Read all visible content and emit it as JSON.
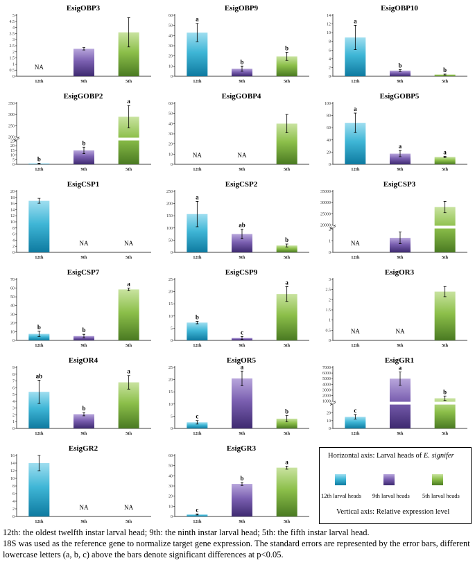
{
  "colors": {
    "12th": [
      "#0e7aa0",
      "#3fb6d6",
      "#9fdef0"
    ],
    "9th": [
      "#3e2a70",
      "#7a5fb0",
      "#b8a6dc"
    ],
    "5th": [
      "#4a7a22",
      "#8cbf4a",
      "#c9e3a0"
    ]
  },
  "chart_data": [
    {
      "type": "bar",
      "title": "EsigOBP3",
      "categories": [
        "12th",
        "9th",
        "5th"
      ],
      "values": [
        null,
        2.25,
        3.6
      ],
      "errors": [
        null,
        0.1,
        1.2
      ],
      "sig": [
        "",
        "",
        ""
      ],
      "na": [
        "NA",
        "",
        ""
      ],
      "ylim": [
        0,
        5
      ],
      "yticks": [
        "0",
        "0.5",
        "1",
        "1.5",
        "2",
        "2.5",
        "3",
        "3.5",
        "4",
        "4.5",
        "5"
      ],
      "ytick_values": [
        0,
        0.5,
        1,
        1.5,
        2,
        2.5,
        3,
        3.5,
        4,
        4.5,
        5
      ]
    },
    {
      "type": "bar",
      "title": "EsigOBP9",
      "categories": [
        "12th",
        "9th",
        "5th"
      ],
      "values": [
        43,
        7.5,
        19.5
      ],
      "errors": [
        9,
        2.5,
        4
      ],
      "sig": [
        "a",
        "b",
        "b"
      ],
      "na": [
        "",
        "",
        ""
      ],
      "ylim": [
        0,
        60
      ],
      "yticks": [
        "0",
        "10",
        "20",
        "30",
        "40",
        "50",
        "60"
      ],
      "ytick_values": [
        0,
        10,
        20,
        30,
        40,
        50,
        60
      ]
    },
    {
      "type": "bar",
      "title": "EsigOBP10",
      "categories": [
        "12th",
        "9th",
        "5th"
      ],
      "values": [
        8.9,
        1.3,
        0.4
      ],
      "errors": [
        2.8,
        0.2,
        0.1
      ],
      "sig": [
        "a",
        "b",
        "b"
      ],
      "na": [
        "",
        "",
        ""
      ],
      "ylim": [
        0,
        14
      ],
      "yticks": [
        "0",
        "2",
        "4",
        "6",
        "8",
        "10",
        "12",
        "14"
      ],
      "ytick_values": [
        0,
        2,
        4,
        6,
        8,
        10,
        12,
        14
      ]
    },
    {
      "type": "bar",
      "title": "EsigGOBP2",
      "categories": [
        "12th",
        "9th",
        "5th"
      ],
      "values": [
        0.8,
        15,
        290
      ],
      "errors": [
        0.3,
        3.5,
        50
      ],
      "sig": [
        "b",
        "b",
        "a"
      ],
      "na": [
        "",
        "",
        ""
      ],
      "axis_break": true,
      "ylim_low": [
        0,
        25
      ],
      "ylim_high": [
        200,
        350
      ],
      "yticks_low": [
        "0",
        "5",
        "10",
        "15",
        "20",
        "25"
      ],
      "ytick_values_low": [
        0,
        5,
        10,
        15,
        20,
        25
      ],
      "yticks_high": [
        "200",
        "250",
        "300",
        "350"
      ],
      "ytick_values_high": [
        200,
        250,
        300,
        350
      ]
    },
    {
      "type": "bar",
      "title": "EsigGOBP4",
      "categories": [
        "12th",
        "9th",
        "5th"
      ],
      "values": [
        null,
        null,
        40
      ],
      "errors": [
        null,
        null,
        9
      ],
      "sig": [
        "",
        "",
        ""
      ],
      "na": [
        "NA",
        "NA",
        ""
      ],
      "ylim": [
        0,
        60
      ],
      "yticks": [
        "0",
        "10",
        "20",
        "30",
        "40",
        "50",
        "60"
      ],
      "ytick_values": [
        0,
        10,
        20,
        30,
        40,
        50,
        60
      ]
    },
    {
      "type": "bar",
      "title": "EsigGOBP5",
      "categories": [
        "12th",
        "9th",
        "5th"
      ],
      "values": [
        68,
        17.5,
        12
      ],
      "errors": [
        16,
        5,
        1
      ],
      "sig": [
        "a",
        "a",
        "a"
      ],
      "na": [
        "",
        "",
        ""
      ],
      "ylim": [
        0,
        100
      ],
      "yticks": [
        "0",
        "20",
        "40",
        "60",
        "80",
        "100"
      ],
      "ytick_values": [
        0,
        20,
        40,
        60,
        80,
        100
      ]
    },
    {
      "type": "bar",
      "title": "EsigCSP1",
      "categories": [
        "12th",
        "9th",
        "5th"
      ],
      "values": [
        16.9,
        null,
        null
      ],
      "errors": [
        0.8,
        null,
        null
      ],
      "sig": [
        "",
        "",
        ""
      ],
      "na": [
        "",
        "NA",
        "NA"
      ],
      "ylim": [
        0,
        20
      ],
      "yticks": [
        "0",
        "2",
        "4",
        "6",
        "8",
        "10",
        "12",
        "14",
        "16",
        "18",
        "20"
      ],
      "ytick_values": [
        0,
        2,
        4,
        6,
        8,
        10,
        12,
        14,
        16,
        18,
        20
      ]
    },
    {
      "type": "bar",
      "title": "EsigCSP2",
      "categories": [
        "12th",
        "9th",
        "5th"
      ],
      "values": [
        157,
        75,
        28
      ],
      "errors": [
        52,
        20,
        6
      ],
      "sig": [
        "a",
        "ab",
        "b"
      ],
      "na": [
        "",
        "",
        ""
      ],
      "ylim": [
        0,
        250
      ],
      "yticks": [
        "0",
        "50",
        "100",
        "150",
        "200",
        "250"
      ],
      "ytick_values": [
        0,
        50,
        100,
        150,
        200,
        250
      ]
    },
    {
      "type": "bar",
      "title": "EsigCSP3",
      "categories": [
        "12th",
        "9th",
        "5th"
      ],
      "values": [
        null,
        1.25,
        28000
      ],
      "errors": [
        null,
        0.5,
        2500
      ],
      "sig": [
        "",
        "",
        ""
      ],
      "na": [
        "NA",
        "",
        ""
      ],
      "axis_break": true,
      "ylim_low": [
        0,
        2
      ],
      "ylim_high": [
        20000,
        35000
      ],
      "yticks_low": [
        "0",
        "1",
        "2"
      ],
      "ytick_values_low": [
        0,
        1,
        2
      ],
      "yticks_high": [
        "20000",
        "25000",
        "30000",
        "35000"
      ],
      "ytick_values_high": [
        20000,
        25000,
        30000,
        35000
      ]
    },
    {
      "type": "bar",
      "title": "EsigCSP7",
      "categories": [
        "12th",
        "9th",
        "5th"
      ],
      "values": [
        7.5,
        5,
        58.5
      ],
      "errors": [
        3,
        2,
        1.5
      ],
      "sig": [
        "b",
        "b",
        "a"
      ],
      "na": [
        "",
        "",
        ""
      ],
      "ylim": [
        0,
        70
      ],
      "yticks": [
        "0",
        "10",
        "20",
        "30",
        "40",
        "50",
        "60",
        "70"
      ],
      "ytick_values": [
        0,
        10,
        20,
        30,
        40,
        50,
        60,
        70
      ]
    },
    {
      "type": "bar",
      "title": "EsigCSP9",
      "categories": [
        "12th",
        "9th",
        "5th"
      ],
      "values": [
        7.3,
        1,
        19
      ],
      "errors": [
        0.5,
        0.6,
        3
      ],
      "sig": [
        "b",
        "c",
        "a"
      ],
      "na": [
        "",
        "",
        ""
      ],
      "ylim": [
        0,
        25
      ],
      "yticks": [
        "0",
        "5",
        "10",
        "15",
        "20",
        "25"
      ],
      "ytick_values": [
        0,
        5,
        10,
        15,
        20,
        25
      ]
    },
    {
      "type": "bar",
      "title": "EsigOR3",
      "categories": [
        "12th",
        "9th",
        "5th"
      ],
      "values": [
        null,
        null,
        2.4
      ],
      "errors": [
        null,
        null,
        0.25
      ],
      "sig": [
        "",
        "",
        ""
      ],
      "na": [
        "NA",
        "NA",
        ""
      ],
      "ylim": [
        0,
        3
      ],
      "yticks": [
        "0",
        "0.5",
        "1",
        "1.5",
        "2",
        "2.5",
        "3"
      ],
      "ytick_values": [
        0,
        0.5,
        1,
        1.5,
        2,
        2.5,
        3
      ]
    },
    {
      "type": "bar",
      "title": "EsigOR4",
      "categories": [
        "12th",
        "9th",
        "5th"
      ],
      "values": [
        5.4,
        2.1,
        6.8
      ],
      "errors": [
        1.7,
        0.25,
        1
      ],
      "sig": [
        "ab",
        "b",
        "a"
      ],
      "na": [
        "",
        "",
        ""
      ],
      "ylim": [
        0,
        9
      ],
      "yticks": [
        "0",
        "1",
        "2",
        "3",
        "4",
        "5",
        "6",
        "7",
        "8",
        "9"
      ],
      "ytick_values": [
        0,
        1,
        2,
        3,
        4,
        5,
        6,
        7,
        8,
        9
      ]
    },
    {
      "type": "bar",
      "title": "EsigOR5",
      "categories": [
        "12th",
        "9th",
        "5th"
      ],
      "values": [
        2.5,
        20.5,
        4
      ],
      "errors": [
        0.7,
        3,
        1.3
      ],
      "sig": [
        "c",
        "a",
        "b"
      ],
      "na": [
        "",
        "",
        ""
      ],
      "ylim": [
        0,
        25
      ],
      "yticks": [
        "0",
        "5",
        "10",
        "15",
        "20",
        "25"
      ],
      "ytick_values": [
        0,
        5,
        10,
        15,
        20,
        25
      ]
    },
    {
      "type": "bar",
      "title": "EsigGR1",
      "categories": [
        "12th",
        "9th",
        "5th"
      ],
      "values": [
        15,
        5000,
        1500
      ],
      "errors": [
        3,
        1200,
        400
      ],
      "sig": [
        "c",
        "a",
        "b"
      ],
      "na": [
        "",
        "",
        ""
      ],
      "axis_break": true,
      "ylim_low": [
        0,
        30
      ],
      "ylim_high": [
        1000,
        7000
      ],
      "yticks_low": [
        "0",
        "10",
        "20"
      ],
      "ytick_values_low": [
        0,
        10,
        20
      ],
      "yticks_high": [
        "1000",
        "2000",
        "3000",
        "4000",
        "5000",
        "6000",
        "7000"
      ],
      "ytick_values_high": [
        1000,
        2000,
        3000,
        4000,
        5000,
        6000,
        7000
      ]
    },
    {
      "type": "bar",
      "title": "EsigGR2",
      "categories": [
        "12th",
        "9th",
        "5th"
      ],
      "values": [
        14,
        null,
        null
      ],
      "errors": [
        2,
        null,
        null
      ],
      "sig": [
        "",
        "",
        ""
      ],
      "na": [
        "",
        "NA",
        "NA"
      ],
      "ylim": [
        0,
        16
      ],
      "yticks": [
        "0",
        "2",
        "4",
        "6",
        "8",
        "10",
        "12",
        "14",
        "16"
      ],
      "ytick_values": [
        0,
        2,
        4,
        6,
        8,
        10,
        12,
        14,
        16
      ]
    },
    {
      "type": "bar",
      "title": "EsigGR3",
      "categories": [
        "12th",
        "9th",
        "5th"
      ],
      "values": [
        2,
        32,
        48
      ],
      "errors": [
        0.5,
        1.5,
        1.5
      ],
      "sig": [
        "c",
        "b",
        "a"
      ],
      "na": [
        "",
        "",
        ""
      ],
      "ylim": [
        0,
        60
      ],
      "yticks": [
        "0",
        "10",
        "20",
        "30",
        "40",
        "50",
        "60"
      ],
      "ytick_values": [
        0,
        10,
        20,
        30,
        40,
        50,
        60
      ]
    }
  ],
  "legend": {
    "title_prefix": "Horizontal axis: Larval heads of ",
    "title_species": "E. signifer",
    "items": [
      "12th larval heads",
      "9th larval heads",
      "5th larval heads"
    ],
    "vertical": "Vertical axis: Relative expression level"
  },
  "caption": {
    "line1": "12th: the oldest twelfth instar larval head; 9th: the ninth instar larval head;  5th: the fifth instar larval head.",
    "line2": "18S was used as the reference gene to normalize target gene expression. The standard errors are represented by the error bars, different lowercase letters (a, b, c) above the bars denote significant differences at p<0.05."
  }
}
